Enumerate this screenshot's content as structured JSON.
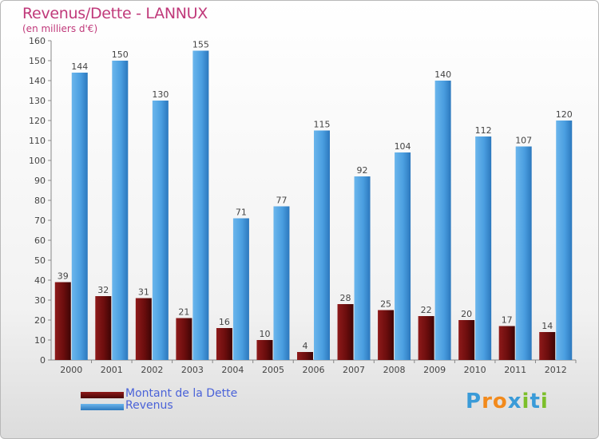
{
  "title": "Revenus/Dette - LANNUX",
  "subtitle": "(en milliers d'€)",
  "logo": {
    "letters": [
      "P",
      "r",
      "o",
      "x",
      "i",
      "t",
      "i"
    ],
    "colors": [
      "#3a9bd8",
      "#f28a1c",
      "#f28a1c",
      "#3a9bd8",
      "#7cbf2a",
      "#3a9bd8",
      "#7cbf2a"
    ]
  },
  "chart_data": {
    "type": "bar",
    "categories": [
      "2000",
      "2001",
      "2002",
      "2003",
      "2004",
      "2005",
      "2006",
      "2007",
      "2008",
      "2009",
      "2010",
      "2011",
      "2012"
    ],
    "series": [
      {
        "name": "Montant de la Dette",
        "color": "#6b0d0d",
        "values": [
          39,
          32,
          31,
          21,
          16,
          10,
          4,
          28,
          25,
          22,
          20,
          17,
          14
        ]
      },
      {
        "name": "Revenus",
        "color": "#4a9ee0",
        "values": [
          144,
          150,
          130,
          155,
          71,
          77,
          115,
          92,
          104,
          140,
          112,
          107,
          120
        ]
      }
    ],
    "ylim": [
      0,
      160
    ],
    "yticks": [
      0,
      10,
      20,
      30,
      40,
      50,
      60,
      70,
      80,
      90,
      100,
      110,
      120,
      130,
      140,
      150,
      160
    ],
    "grid": false,
    "legend": "bottom-left"
  }
}
